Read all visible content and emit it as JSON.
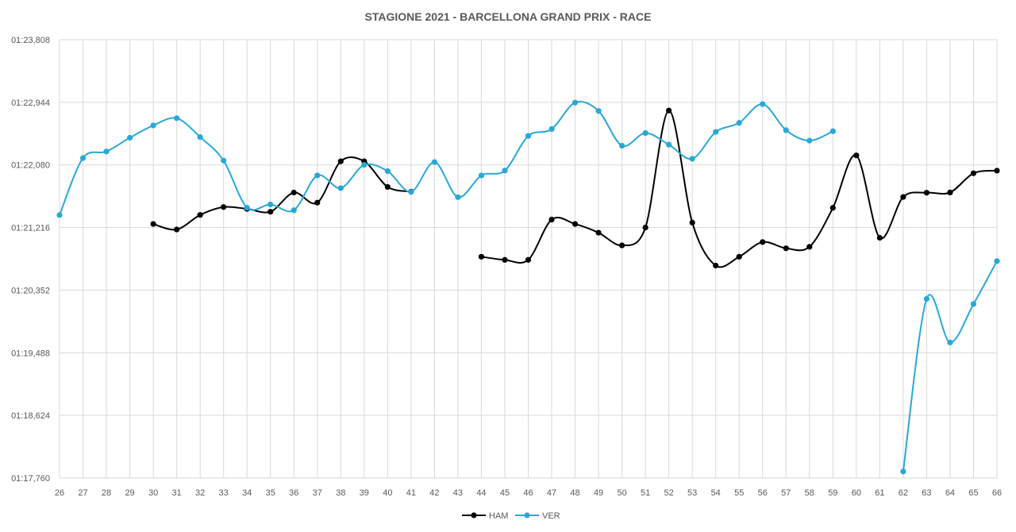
{
  "chart_data": {
    "type": "line",
    "title": "STAGIONE 2021 - BARCELLONA GRAND PRIX - RACE",
    "xlabel": "",
    "ylabel": "",
    "categories": [
      "26",
      "27",
      "28",
      "29",
      "30",
      "31",
      "32",
      "33",
      "34",
      "35",
      "36",
      "37",
      "38",
      "39",
      "40",
      "41",
      "42",
      "43",
      "44",
      "45",
      "46",
      "47",
      "48",
      "49",
      "50",
      "51",
      "52",
      "53",
      "54",
      "55",
      "56",
      "57",
      "58",
      "59",
      "60",
      "61",
      "62",
      "63",
      "64",
      "65",
      "66"
    ],
    "y_ticks": [
      "01:17,760",
      "01:18,624",
      "01:19,488",
      "01:20,352",
      "01:21,216",
      "01:22,080",
      "01:22,944",
      "01:23,808"
    ],
    "ylim": [
      77.76,
      83.808
    ],
    "grid": true,
    "legend_position": "bottom",
    "series": [
      {
        "name": "HAM",
        "color": "#000000",
        "values": [
          null,
          null,
          null,
          null,
          81.265,
          81.189,
          81.39,
          81.499,
          81.474,
          81.434,
          81.699,
          81.559,
          82.13,
          82.13,
          81.776,
          81.712,
          null,
          null,
          80.813,
          80.77,
          80.77,
          81.326,
          81.265,
          81.145,
          80.97,
          81.216,
          82.831,
          81.285,
          80.691,
          80.813,
          81.016,
          80.93,
          80.95,
          81.488,
          82.212,
          81.075,
          81.638,
          81.697,
          81.7,
          81.965,
          82.001
        ]
      },
      {
        "name": "VER",
        "color": "#29A8D8",
        "values": [
          81.388,
          82.175,
          82.265,
          82.455,
          82.625,
          82.725,
          82.465,
          82.14,
          81.49,
          81.535,
          81.455,
          81.935,
          81.76,
          82.08,
          81.995,
          81.708,
          82.12,
          81.635,
          81.935,
          82.002,
          82.48,
          82.575,
          82.94,
          82.825,
          82.345,
          82.52,
          82.36,
          82.165,
          82.535,
          82.66,
          82.92,
          82.56,
          82.415,
          82.545,
          null,
          null,
          77.85,
          80.232,
          79.63,
          80.161,
          80.753
        ]
      }
    ]
  }
}
